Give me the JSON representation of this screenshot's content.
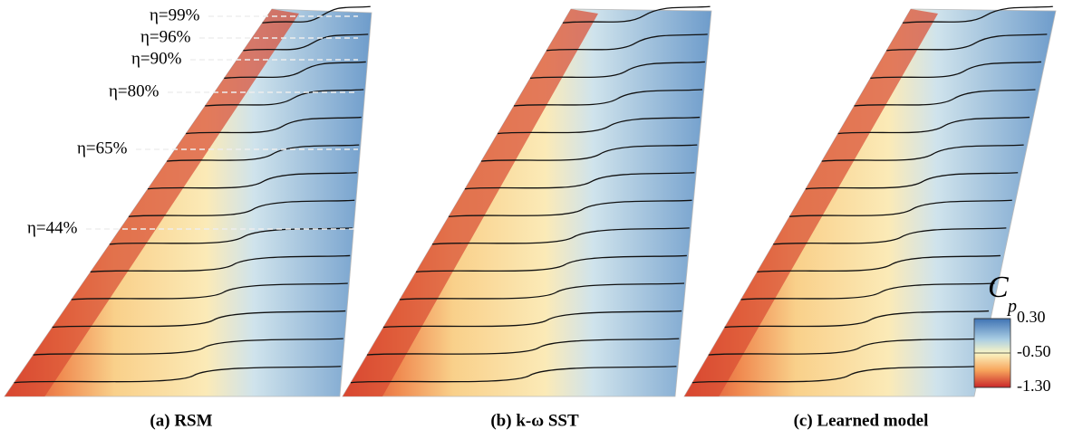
{
  "panels": [
    {
      "caption": "(a) RSM"
    },
    {
      "caption": "(b) k-ω SST"
    },
    {
      "caption": "(c) Learned model"
    }
  ],
  "eta_labels": [
    "η=99%",
    "η=96%",
    "η=90%",
    "η=80%",
    "η=65%",
    "η=44%"
  ],
  "colorbar": {
    "label": "C",
    "subscript": "p",
    "range": [
      -1.3,
      0.3
    ],
    "ticks": [
      {
        "value": 0.3,
        "label": "0.30"
      },
      {
        "value": -0.5,
        "label": "-0.50"
      },
      {
        "value": -1.3,
        "label": "-1.30"
      }
    ]
  }
}
